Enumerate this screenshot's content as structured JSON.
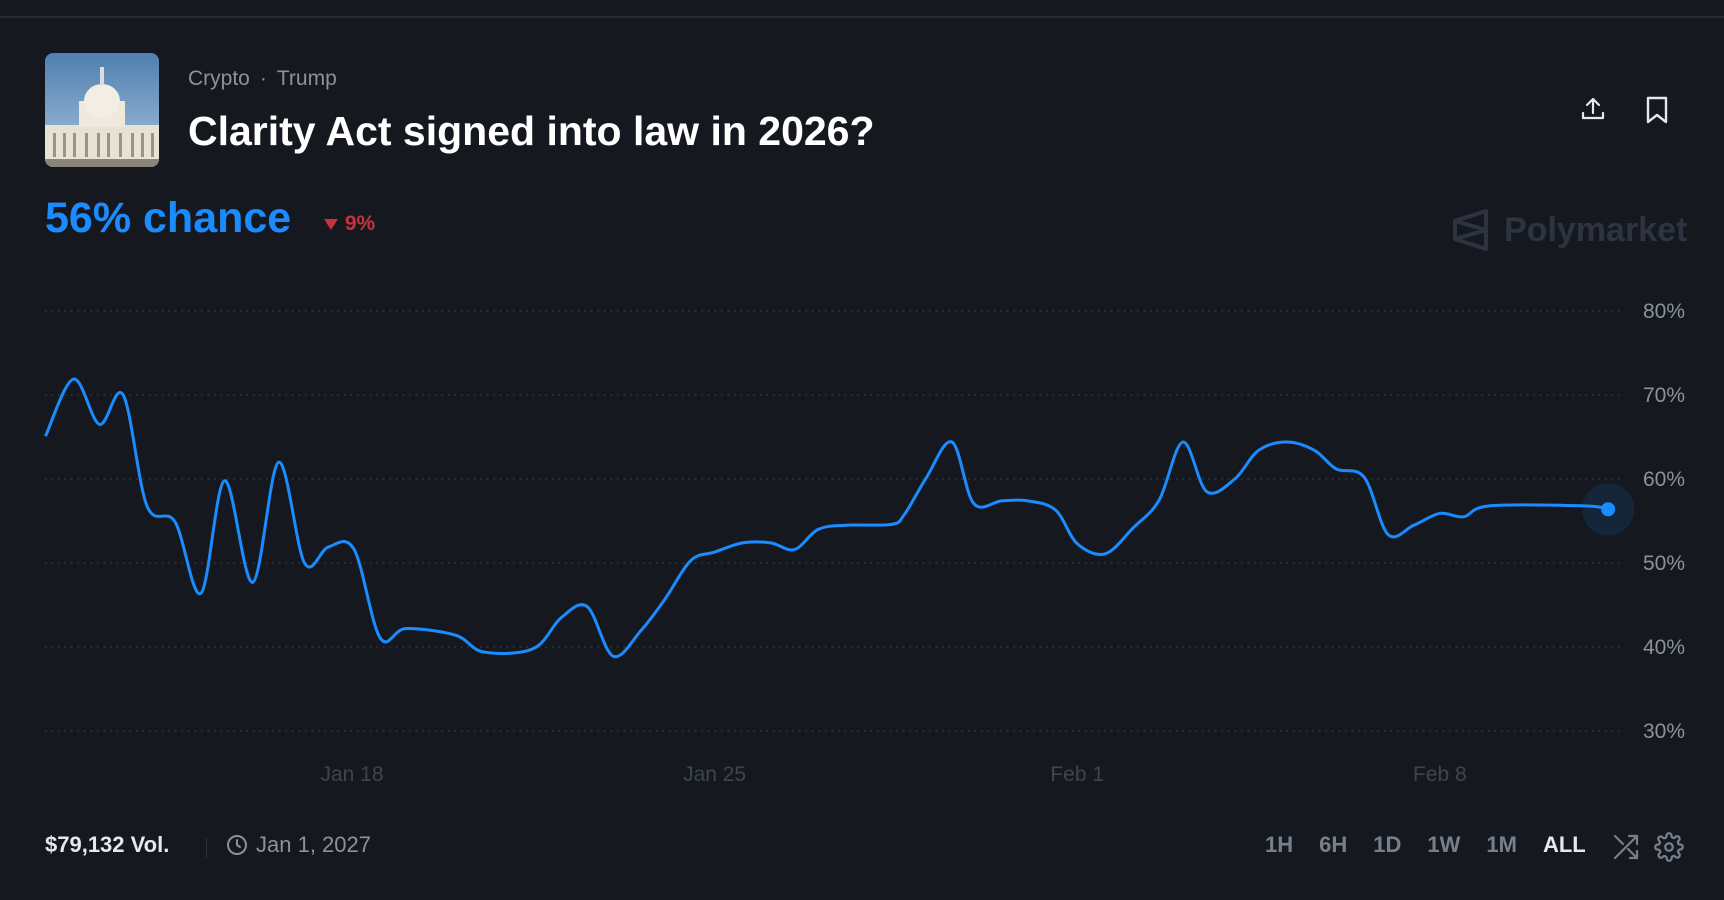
{
  "header": {
    "breadcrumbs": [
      "Crypto",
      "Trump"
    ],
    "title": "Clarity Act signed into law in 2026?",
    "chance": "56% chance",
    "change": "9%",
    "change_direction": "down",
    "icons": [
      "share-icon",
      "bookmark-icon"
    ],
    "brand": "Polymarket"
  },
  "colors": {
    "line": "#1a8cff",
    "down": "#c8323a",
    "background": "#15191f"
  },
  "chart_data": {
    "type": "line",
    "ylim": [
      30,
      80
    ],
    "yticks": [
      80,
      70,
      60,
      50,
      40,
      30
    ],
    "ytick_labels": [
      "80%",
      "70%",
      "60%",
      "50%",
      "40%",
      "30%"
    ],
    "xtick_labels": [
      "Jan 18",
      "Jan 25",
      "Feb 1",
      "Feb 8"
    ],
    "xticks": [
      "2026-01-18T00:00",
      "2026-01-25T00:00",
      "2026-02-01T00:00",
      "2026-02-08T00:00"
    ],
    "grid": "horizontal dotted",
    "series": [
      {
        "points": [
          [
            "2026-01-12T02:00",
            65.1
          ],
          [
            "2026-01-12T15:00",
            71.9
          ],
          [
            "2026-01-13T03:00",
            66.5
          ],
          [
            "2026-01-13T14:00",
            70.0
          ],
          [
            "2026-01-14T01:00",
            56.8
          ],
          [
            "2026-01-14T14:00",
            54.9
          ],
          [
            "2026-01-15T02:00",
            46.4
          ],
          [
            "2026-01-15T13:00",
            59.8
          ],
          [
            "2026-01-16T02:00",
            47.7
          ],
          [
            "2026-01-16T14:00",
            62.0
          ],
          [
            "2026-01-17T02:00",
            50.0
          ],
          [
            "2026-01-17T13:00",
            51.9
          ],
          [
            "2026-01-18T01:00",
            51.6
          ],
          [
            "2026-01-18T13:00",
            41.1
          ],
          [
            "2026-01-19T01:00",
            42.2
          ],
          [
            "2026-01-20T00:00",
            41.4
          ],
          [
            "2026-01-20T13:00",
            39.4
          ],
          [
            "2026-01-21T12:00",
            39.8
          ],
          [
            "2026-01-22T01:00",
            43.5
          ],
          [
            "2026-01-22T13:00",
            44.8
          ],
          [
            "2026-01-23T01:00",
            38.9
          ],
          [
            "2026-01-23T14:00",
            42.0
          ],
          [
            "2026-01-24T01:00",
            45.7
          ],
          [
            "2026-01-24T13:00",
            50.3
          ],
          [
            "2026-01-25T00:00",
            51.3
          ],
          [
            "2026-01-25T13:00",
            52.4
          ],
          [
            "2026-01-26T02:00",
            52.4
          ],
          [
            "2026-01-26T13:00",
            51.6
          ],
          [
            "2026-01-27T00:00",
            54.0
          ],
          [
            "2026-01-27T13:00",
            54.5
          ],
          [
            "2026-01-28T10:00",
            54.6
          ],
          [
            "2026-01-28T16:00",
            55.8
          ],
          [
            "2026-01-29T02:00",
            60.1
          ],
          [
            "2026-01-29T14:00",
            64.4
          ],
          [
            "2026-01-30T00:00",
            57.1
          ],
          [
            "2026-01-30T13:00",
            57.4
          ],
          [
            "2026-01-31T01:00",
            57.4
          ],
          [
            "2026-01-31T14:00",
            56.3
          ],
          [
            "2026-02-01T00:00",
            52.3
          ],
          [
            "2026-02-01T13:00",
            51.1
          ],
          [
            "2026-02-02T02:00",
            54.2
          ],
          [
            "2026-02-02T14:00",
            57.5
          ],
          [
            "2026-02-03T01:00",
            64.4
          ],
          [
            "2026-02-03T12:00",
            58.5
          ],
          [
            "2026-02-04T01:00",
            60.0
          ],
          [
            "2026-02-04T12:00",
            63.4
          ],
          [
            "2026-02-05T01:00",
            64.4
          ],
          [
            "2026-02-05T14:00",
            63.4
          ],
          [
            "2026-02-06T00:00",
            61.2
          ],
          [
            "2026-02-06T13:00",
            60.2
          ],
          [
            "2026-02-07T00:00",
            53.4
          ],
          [
            "2026-02-07T12:00",
            54.5
          ],
          [
            "2026-02-08T00:00",
            55.9
          ],
          [
            "2026-02-08T11:00",
            55.5
          ],
          [
            "2026-02-08T23:00",
            56.8
          ],
          [
            "2026-02-10T19:00",
            56.8
          ],
          [
            "2026-02-11T06:00",
            56.4
          ]
        ]
      }
    ]
  },
  "footer": {
    "volume": "$79,132 Vol.",
    "end_date": "Jan 1, 2027",
    "ranges": [
      "1H",
      "6H",
      "1D",
      "1W",
      "1M",
      "ALL"
    ],
    "active_range": "ALL"
  }
}
